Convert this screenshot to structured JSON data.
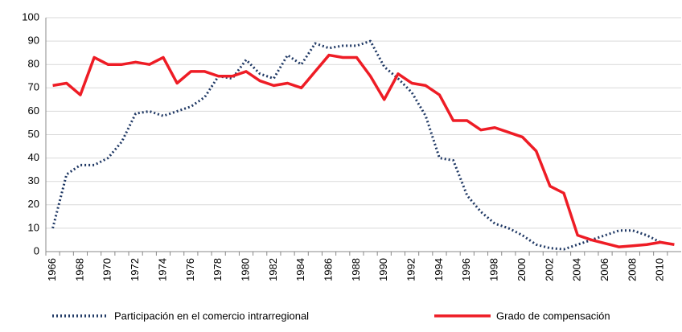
{
  "chart_data": {
    "type": "line",
    "categories": [
      "1966",
      null,
      "1968",
      null,
      "1970",
      null,
      "1972",
      null,
      "1974",
      null,
      "1976",
      null,
      "1978",
      null,
      "1980",
      null,
      "1982",
      null,
      "1984",
      null,
      "1986",
      null,
      "1988",
      null,
      "1990",
      null,
      "1992",
      null,
      "1994",
      null,
      "1996",
      null,
      "1998",
      null,
      "2000",
      null,
      "2002",
      null,
      "2004",
      null,
      "2006",
      null,
      "2008",
      null,
      "2010",
      null
    ],
    "series": [
      {
        "name": "Participación en el comercio intrarregional",
        "color": "#1f3864",
        "style": "dotted",
        "values": [
          10,
          33,
          37,
          37,
          40,
          47,
          59,
          60,
          58,
          60,
          62,
          66,
          75,
          74,
          82,
          76,
          74,
          84,
          80,
          89,
          87,
          88,
          88,
          90,
          79,
          74,
          68,
          58,
          40,
          39,
          24,
          17,
          12,
          10,
          7,
          3,
          1.5,
          1,
          3,
          5,
          7,
          9,
          9,
          7,
          4,
          null
        ]
      },
      {
        "name": "Grado de compensación",
        "color": "#ee1c25",
        "style": "solid",
        "values": [
          71,
          72,
          67,
          83,
          80,
          80,
          81,
          80,
          83,
          72,
          77,
          77,
          75,
          75,
          77,
          73,
          71,
          72,
          70,
          77,
          84,
          83,
          83,
          75,
          65,
          76,
          72,
          71,
          67,
          56,
          56,
          52,
          53,
          51,
          49,
          43,
          28,
          25,
          7,
          5,
          3.5,
          2,
          2.5,
          3,
          4,
          3
        ]
      }
    ],
    "ylim": [
      0,
      100
    ],
    "yticks": [
      0,
      10,
      20,
      30,
      40,
      50,
      60,
      70,
      80,
      90,
      100
    ],
    "grid": true,
    "legend": "bottom"
  }
}
